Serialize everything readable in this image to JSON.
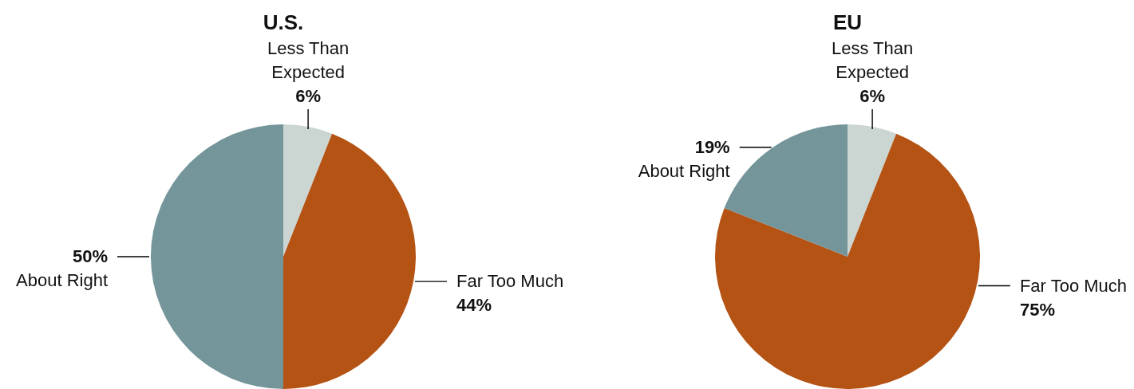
{
  "chart_data": [
    {
      "type": "pie",
      "title": "U.S.",
      "categories": [
        "Less Than Expected",
        "Far Too Much",
        "About Right"
      ],
      "values": [
        6,
        44,
        50
      ],
      "value_labels": [
        "6%",
        "44%",
        "50%"
      ],
      "colors": [
        "#cbd5d2",
        "#b45314",
        "#74959a"
      ]
    },
    {
      "type": "pie",
      "title": "EU",
      "categories": [
        "Less Than Expected",
        "Far Too Much",
        "About Right"
      ],
      "values": [
        6,
        75,
        19
      ],
      "value_labels": [
        "6%",
        "75%",
        "19%"
      ],
      "colors": [
        "#cbd5d2",
        "#b45314",
        "#74959a"
      ]
    }
  ]
}
